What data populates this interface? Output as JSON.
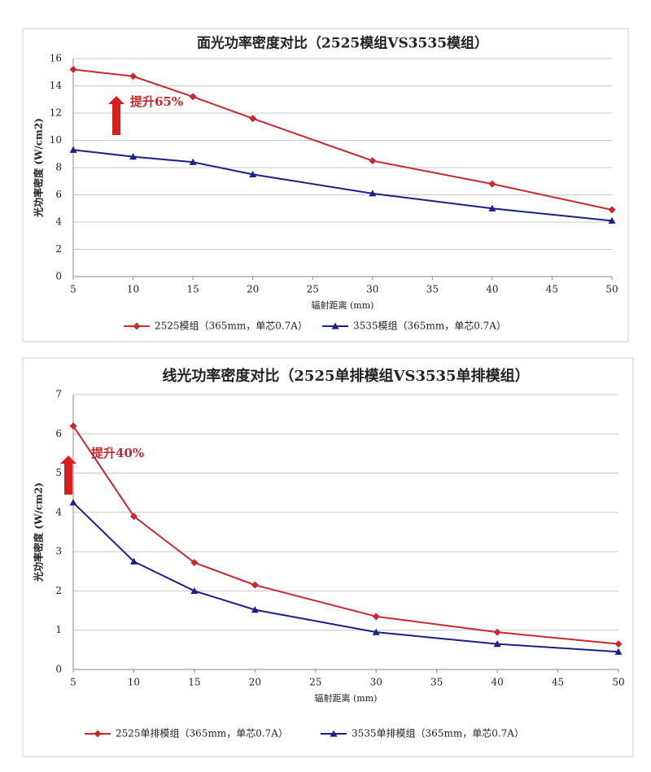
{
  "chart_data": [
    {
      "type": "line",
      "title": "面光功率密度对比（2525模组VS3535模组）",
      "x_label": "辐射距离 (mm)",
      "y_label": "光功率密度 (W/cm2)",
      "x": [
        5,
        10,
        15,
        20,
        30,
        40,
        50
      ],
      "series": [
        {
          "name": "2525模组（365mm，单芯0.7A）",
          "color": "#c8282e",
          "marker": "diamond",
          "values": [
            15.2,
            14.7,
            13.2,
            11.6,
            8.5,
            6.8,
            4.9
          ]
        },
        {
          "name": "3535模组（365mm，单芯0.7A）",
          "color": "#1c1f8a",
          "marker": "triangle",
          "values": [
            9.3,
            8.8,
            8.4,
            7.5,
            6.1,
            5.0,
            4.1
          ]
        }
      ],
      "xlim": [
        5,
        50
      ],
      "xticks": [
        5,
        10,
        15,
        20,
        25,
        30,
        35,
        40,
        45,
        50
      ],
      "ylim": [
        0,
        16
      ],
      "yticks": [
        0,
        2,
        4,
        6,
        8,
        10,
        12,
        14,
        16
      ],
      "grid": true,
      "legend": "bottom",
      "annotations": [
        "提升65%"
      ]
    },
    {
      "type": "line",
      "title": "线光功率密度对比（2525单排模组VS3535单排模组）",
      "x_label": "辐射距离 (mm)",
      "y_label": "光功率密度 (W/cm2)",
      "x": [
        5,
        10,
        15,
        20,
        30,
        40,
        50
      ],
      "series": [
        {
          "name": "2525单排模组（365mm，单芯0.7A）",
          "color": "#c8282e",
          "marker": "diamond",
          "values": [
            6.2,
            3.9,
            2.72,
            2.15,
            1.35,
            0.95,
            0.65
          ]
        },
        {
          "name": "3535单排模组（365mm，单芯0.7A）",
          "color": "#1c1f8a",
          "marker": "triangle",
          "values": [
            4.25,
            2.75,
            2.0,
            1.52,
            0.95,
            0.65,
            0.45
          ]
        }
      ],
      "xlim": [
        5,
        50
      ],
      "xticks": [
        5,
        10,
        15,
        20,
        25,
        30,
        35,
        40,
        45,
        50
      ],
      "ylim": [
        0,
        7
      ],
      "yticks": [
        0,
        1,
        2,
        3,
        4,
        5,
        6,
        7
      ],
      "grid": true,
      "legend": "bottom",
      "annotations": [
        "提升40%"
      ]
    }
  ]
}
